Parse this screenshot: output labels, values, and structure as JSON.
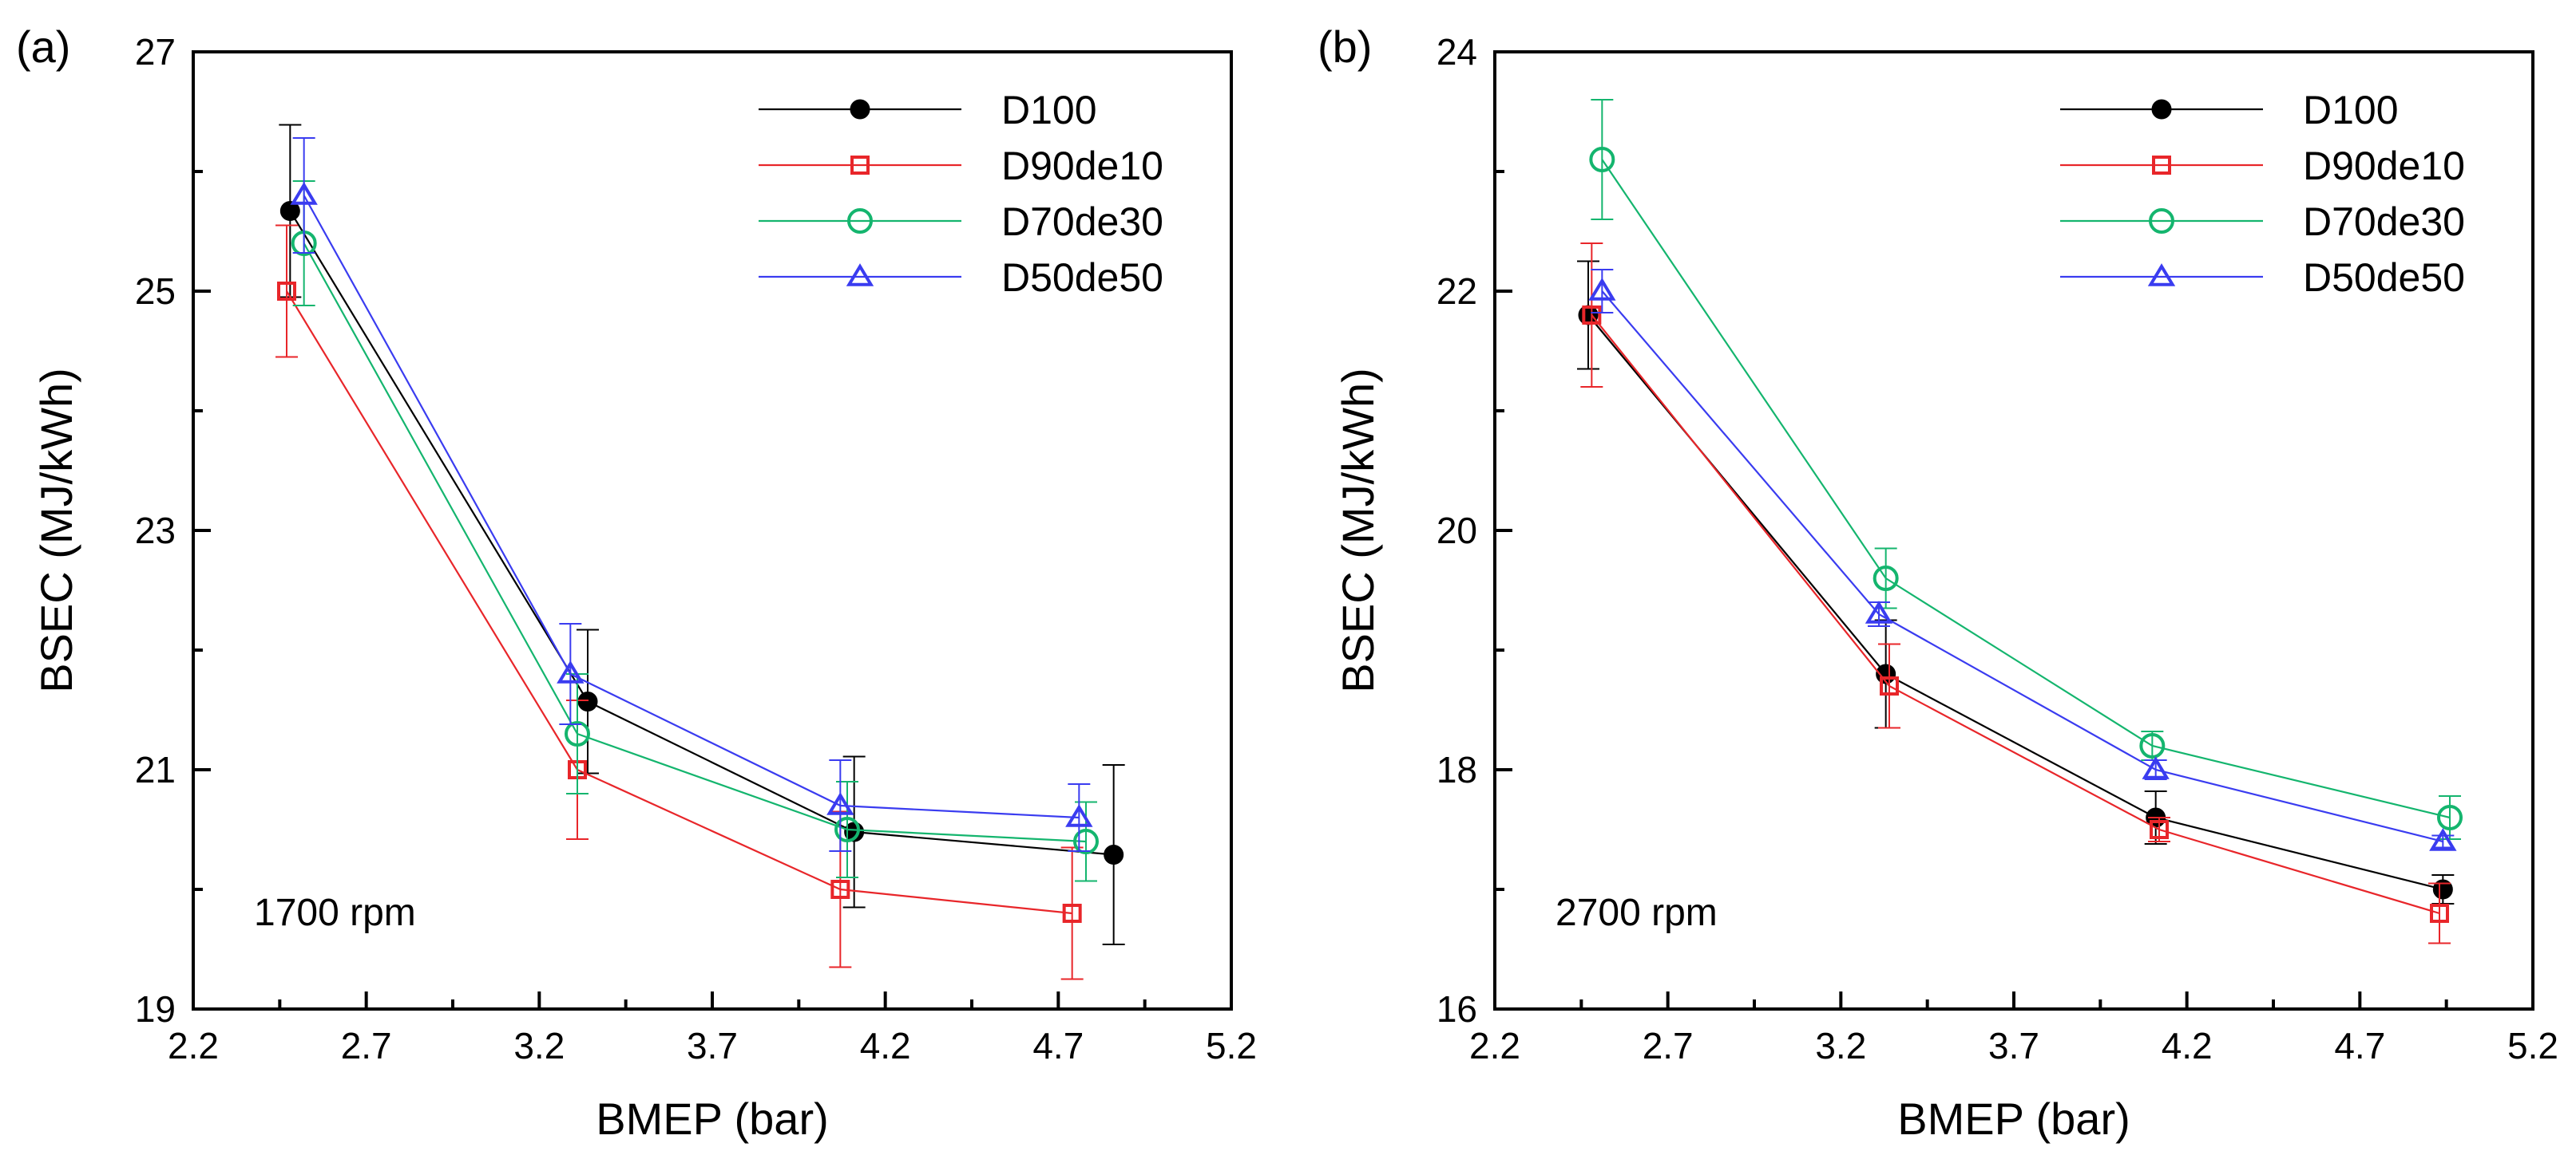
{
  "chart_data": [
    {
      "type": "line",
      "panel_label": "(a)",
      "annotation": "1700 rpm",
      "xlabel": "BMEP (bar)",
      "ylabel": "BSEC (MJ/kWh)",
      "xlim": [
        2.2,
        5.2
      ],
      "ylim": [
        19,
        27
      ],
      "x_ticks": [
        "2.2",
        "2.7",
        "3.2",
        "3.7",
        "4.2",
        "4.7",
        "5.2"
      ],
      "y_ticks": [
        "19",
        "21",
        "23",
        "25",
        "27"
      ],
      "legend_position": "top-right",
      "series": [
        {
          "name": "D100",
          "color": "#000000",
          "marker": "filled-circle",
          "x": [
            2.48,
            3.34,
            4.11,
            4.86
          ],
          "y": [
            25.67,
            21.57,
            20.48,
            20.29
          ],
          "err": [
            0.72,
            0.6,
            0.63,
            0.75
          ]
        },
        {
          "name": "D90de10",
          "color": "#e8262a",
          "marker": "square",
          "x": [
            2.47,
            3.31,
            4.07,
            4.74
          ],
          "y": [
            25.0,
            21.0,
            20.0,
            19.8
          ],
          "err": [
            0.55,
            0.58,
            0.65,
            0.55
          ]
        },
        {
          "name": "D70de30",
          "color": "#14b56e",
          "marker": "circle",
          "x": [
            2.52,
            3.31,
            4.09,
            4.78
          ],
          "y": [
            25.4,
            21.3,
            20.5,
            20.4
          ],
          "err": [
            0.52,
            0.5,
            0.4,
            0.33
          ]
        },
        {
          "name": "D50de50",
          "color": "#3a3cf0",
          "marker": "triangle",
          "x": [
            2.52,
            3.29,
            4.07,
            4.76
          ],
          "y": [
            25.8,
            21.8,
            20.7,
            20.6
          ],
          "err": [
            0.48,
            0.42,
            0.38,
            0.28
          ]
        }
      ]
    },
    {
      "type": "line",
      "panel_label": "(b)",
      "annotation": "2700 rpm",
      "xlabel": "BMEP (bar)",
      "ylabel": "BSEC (MJ/kWh)",
      "xlim": [
        2.2,
        5.2
      ],
      "ylim": [
        16,
        24
      ],
      "x_ticks": [
        "2.2",
        "2.7",
        "3.2",
        "3.7",
        "4.2",
        "4.7",
        "5.2"
      ],
      "y_ticks": [
        "16",
        "18",
        "20",
        "22",
        "24"
      ],
      "legend_position": "top-right",
      "series": [
        {
          "name": "D100",
          "color": "#000000",
          "marker": "filled-circle",
          "x": [
            2.47,
            3.33,
            4.11,
            4.94
          ],
          "y": [
            21.8,
            18.8,
            17.6,
            17.0
          ],
          "err": [
            0.45,
            0.45,
            0.22,
            0.12
          ]
        },
        {
          "name": "D90de10",
          "color": "#e8262a",
          "marker": "square",
          "x": [
            2.48,
            3.34,
            4.12,
            4.93
          ],
          "y": [
            21.8,
            18.7,
            17.5,
            16.8
          ],
          "err": [
            0.6,
            0.35,
            0.1,
            0.25
          ]
        },
        {
          "name": "D70de30",
          "color": "#14b56e",
          "marker": "circle",
          "x": [
            2.51,
            3.33,
            4.1,
            4.96
          ],
          "y": [
            23.1,
            19.6,
            18.2,
            17.6
          ],
          "err": [
            0.5,
            0.25,
            0.12,
            0.18
          ]
        },
        {
          "name": "D50de50",
          "color": "#3a3cf0",
          "marker": "triangle",
          "x": [
            2.51,
            3.31,
            4.11,
            4.94
          ],
          "y": [
            22.0,
            19.3,
            18.0,
            17.4
          ],
          "err": [
            0.18,
            0.1,
            0.08,
            0.05
          ]
        }
      ]
    }
  ]
}
